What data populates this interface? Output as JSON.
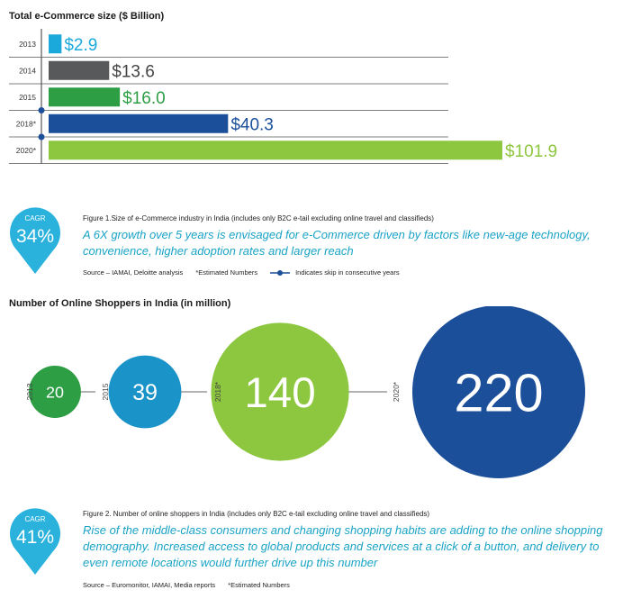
{
  "chart_data": [
    {
      "type": "bar",
      "title": "Total e-Commerce size ($ Billion)",
      "categories": [
        "2013",
        "2014",
        "2015",
        "2018*",
        "2020*"
      ],
      "values": [
        2.9,
        13.6,
        16.0,
        40.3,
        101.9
      ],
      "value_labels": [
        "$2.9",
        "$13.6",
        "$16.0",
        "$40.3",
        "$101.9"
      ],
      "colors": [
        "#1ba9dc",
        "#58595b",
        "#2e9e45",
        "#1b4f9a",
        "#8dc63f"
      ],
      "orientation": "horizontal",
      "skip_after_index": 2
    },
    {
      "type": "bubble",
      "title": "Number of Online Shoppers in India (in million)",
      "categories": [
        "2013",
        "2015",
        "2018*",
        "2020*"
      ],
      "values": [
        20,
        39,
        140,
        220
      ],
      "colors": [
        "#2e9e45",
        "#1a93c8",
        "#8dc63f",
        "#1b4f9a"
      ]
    }
  ],
  "section1": {
    "cagr_label": "CAGR",
    "cagr_value": "34%",
    "figure_caption": "Figure 1.Size of e-Commerce industry in India (includes only B2C e-tail excluding online travel and classifieds)",
    "quote": "A 6X growth over 5 years is envisaged for e-Commerce driven by factors like new-age technology, convenience, higher adoption rates and larger reach",
    "source": "Source – IAMAI, Deloitte analysis",
    "estimated": "*Estimated Numbers",
    "legend_skip": "Indicates skip in consecutive years"
  },
  "section2": {
    "cagr_label": "CAGR",
    "cagr_value": "41%",
    "figure_caption": "Figure 2. Number of online shoppers in India (includes only B2C e-tail excluding online travel and classifieds)",
    "quote": "Rise of the middle-class consumers and changing shopping habits are adding to the online shopping demography. Increased access to global products and services at a click of a button, and delivery to even remote locations would further drive up this number",
    "source": "Source – Euromonitor, IAMAI, Media reports",
    "estimated": "*Estimated Numbers"
  },
  "colors": {
    "cagr_fill": "#2ab2dd",
    "quote": "#1aa3c6",
    "divider": "#555555"
  }
}
